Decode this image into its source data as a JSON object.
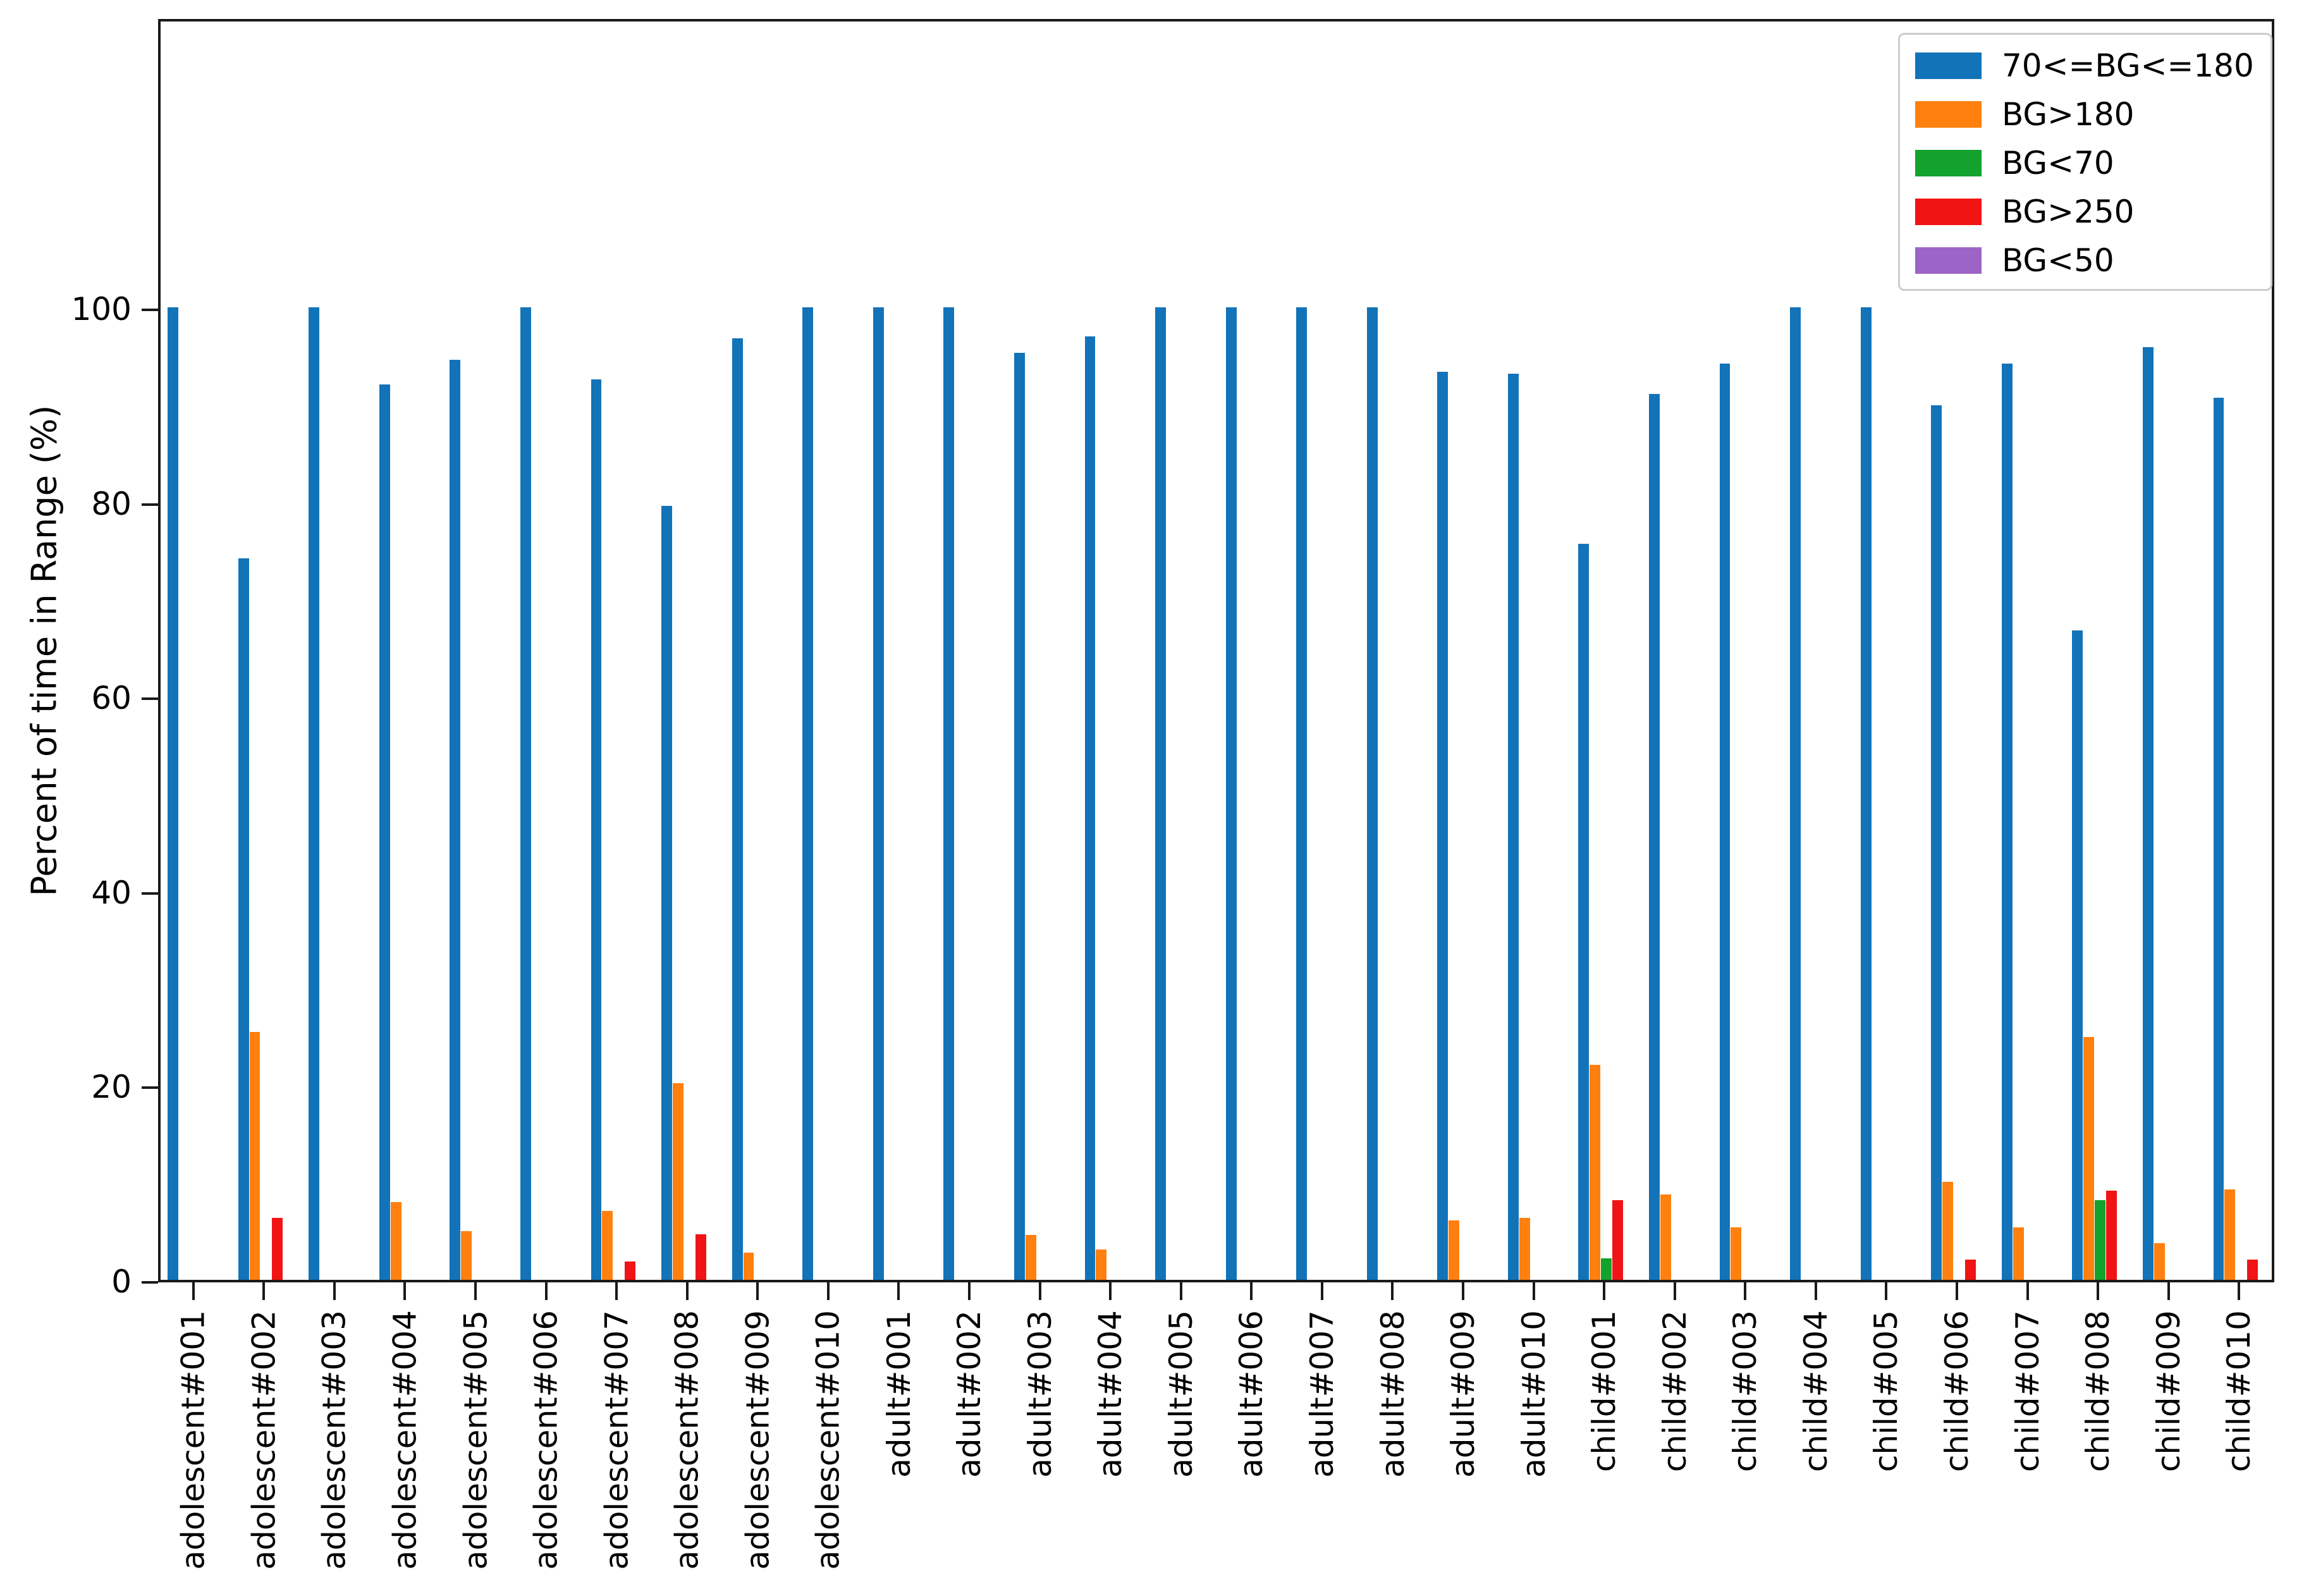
{
  "chart_data": {
    "type": "bar",
    "title": "",
    "xlabel": "",
    "ylabel": "Percent of time in Range (%)",
    "ylim": [
      0,
      130
    ],
    "yticks": [
      0,
      20,
      40,
      60,
      80,
      100
    ],
    "grid": false,
    "legend_position": "upper right",
    "axis_color": "#1a1a1a",
    "text_color": "#000000",
    "categories": [
      "adolescent#001",
      "adolescent#002",
      "adolescent#003",
      "adolescent#004",
      "adolescent#005",
      "adolescent#006",
      "adolescent#007",
      "adolescent#008",
      "adolescent#009",
      "adolescent#010",
      "adult#001",
      "adult#002",
      "adult#003",
      "adult#004",
      "adult#005",
      "adult#006",
      "adult#007",
      "adult#008",
      "adult#009",
      "adult#010",
      "child#001",
      "child#002",
      "child#003",
      "child#004",
      "child#005",
      "child#006",
      "child#007",
      "child#008",
      "child#009",
      "child#010"
    ],
    "series": [
      {
        "name": "70<=BG<=180",
        "color": "#1273b8",
        "values": [
          100,
          74.2,
          100,
          92.1,
          94.6,
          100,
          92.6,
          79.6,
          96.8,
          100,
          100,
          100,
          95.3,
          97.0,
          100,
          100,
          100,
          100,
          93.4,
          93.2,
          75.7,
          91.1,
          94.2,
          100,
          100,
          89.9,
          94.2,
          66.8,
          95.9,
          90.7
        ]
      },
      {
        "name": "BG>180",
        "color": "#ff800e",
        "values": [
          0,
          25.5,
          0,
          8.0,
          5.0,
          0,
          7.1,
          20.2,
          2.8,
          0,
          0,
          0,
          4.6,
          3.1,
          0,
          0,
          0,
          0,
          6.1,
          6.4,
          22.1,
          8.8,
          5.4,
          0,
          0,
          10.1,
          5.4,
          25.0,
          3.8,
          9.3
        ]
      },
      {
        "name": "BG<70",
        "color": "#12a22d",
        "values": [
          0,
          0,
          0,
          0,
          0,
          0,
          0,
          0,
          0,
          0,
          0,
          0,
          0,
          0,
          0,
          0,
          0,
          0,
          0,
          0,
          2.2,
          0,
          0,
          0,
          0,
          0,
          0,
          8.2,
          0,
          0
        ]
      },
      {
        "name": "BG>250",
        "color": "#f01414",
        "values": [
          0,
          6.4,
          0,
          0,
          0,
          0,
          1.9,
          4.7,
          0,
          0,
          0,
          0,
          0,
          0,
          0,
          0,
          0,
          0,
          0,
          0,
          8.2,
          0,
          0,
          0,
          0,
          2.1,
          0,
          9.2,
          0,
          2.1
        ]
      },
      {
        "name": "BG<50",
        "color": "#9c64c6",
        "values": [
          0,
          0,
          0,
          0,
          0,
          0,
          0,
          0,
          0,
          0,
          0,
          0,
          0,
          0,
          0,
          0,
          0,
          0,
          0,
          0,
          0,
          0,
          0,
          0,
          0,
          0,
          0,
          0,
          0,
          0
        ]
      }
    ]
  }
}
